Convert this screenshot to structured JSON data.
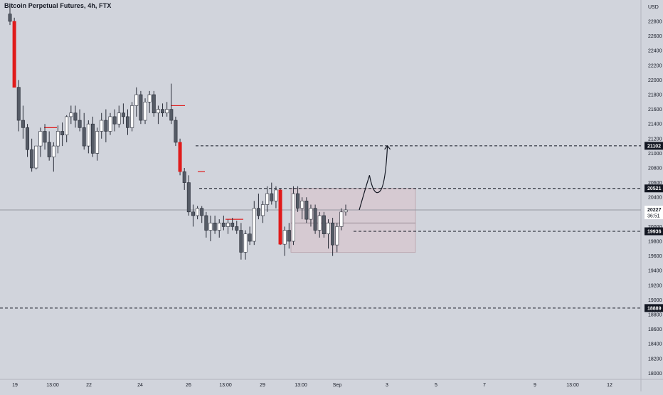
{
  "header": {
    "symbol_title": "Bitcoin Perpetual Futures, 4h, FTX"
  },
  "price_axis": {
    "currency": "USD",
    "ticks": [
      22800,
      22600,
      22400,
      22200,
      22000,
      21800,
      21600,
      21400,
      21200,
      21000,
      20800,
      20600,
      20400,
      20200,
      20000,
      19800,
      19600,
      19400,
      19200,
      19000,
      18800,
      18600,
      18400,
      18200,
      18000
    ]
  },
  "time_axis": {
    "labels": [
      "19",
      "13:00",
      "22",
      "24",
      "26",
      "13:00",
      "29",
      "13:00",
      "Sep",
      "3",
      "5",
      "7",
      "9",
      "13:00",
      "12"
    ]
  },
  "levels": [
    {
      "price": 21102,
      "label": "21102"
    },
    {
      "price": 20521,
      "label": "20521"
    },
    {
      "price": 19936,
      "label": "19936"
    },
    {
      "price": 18889,
      "label": "18889"
    }
  ],
  "current_price": {
    "price": 20227,
    "label": "20227",
    "countdown": "36:51"
  },
  "colors": {
    "background": "#d1d4dc",
    "up_body": "#ffffff",
    "down_body": "#555b66",
    "highlight_down": "#e01b1b",
    "wick": "#2a2e39",
    "range_box": "#d9c3cc",
    "dashed": "#131722"
  },
  "chart_data": {
    "type": "candlestick",
    "title": "Bitcoin Perpetual Futures, 4h, FTX",
    "y_unit": "USD",
    "ylim": [
      17950,
      23000
    ],
    "candles": [
      {
        "o": 22900,
        "h": 23000,
        "l": 22750,
        "c": 22800
      },
      {
        "o": 22800,
        "h": 22850,
        "l": 21900,
        "c": 21900,
        "red": true
      },
      {
        "o": 21900,
        "h": 22000,
        "l": 21300,
        "c": 21450
      },
      {
        "o": 21450,
        "h": 21650,
        "l": 21200,
        "c": 21350
      },
      {
        "o": 21350,
        "h": 21400,
        "l": 20950,
        "c": 21050
      },
      {
        "o": 21050,
        "h": 21200,
        "l": 20750,
        "c": 20800
      },
      {
        "o": 20800,
        "h": 21100,
        "l": 20780,
        "c": 21100
      },
      {
        "o": 21100,
        "h": 21350,
        "l": 20950,
        "c": 21300
      },
      {
        "o": 21300,
        "h": 21400,
        "l": 21050,
        "c": 21150
      },
      {
        "o": 21150,
        "h": 21300,
        "l": 20900,
        "c": 20950
      },
      {
        "o": 20950,
        "h": 21150,
        "l": 20750,
        "c": 21100
      },
      {
        "o": 21100,
        "h": 21380,
        "l": 21000,
        "c": 21300
      },
      {
        "o": 21300,
        "h": 21420,
        "l": 21100,
        "c": 21250
      },
      {
        "o": 21250,
        "h": 21520,
        "l": 21150,
        "c": 21500
      },
      {
        "o": 21500,
        "h": 21650,
        "l": 21400,
        "c": 21550
      },
      {
        "o": 21550,
        "h": 21650,
        "l": 21350,
        "c": 21450
      },
      {
        "o": 21450,
        "h": 21600,
        "l": 21300,
        "c": 21350
      },
      {
        "o": 21350,
        "h": 21550,
        "l": 21050,
        "c": 21100
      },
      {
        "o": 21100,
        "h": 21450,
        "l": 21000,
        "c": 21400
      },
      {
        "o": 21400,
        "h": 21500,
        "l": 20950,
        "c": 21000
      },
      {
        "o": 21000,
        "h": 21350,
        "l": 20900,
        "c": 21300
      },
      {
        "o": 21300,
        "h": 21550,
        "l": 21200,
        "c": 21450
      },
      {
        "o": 21450,
        "h": 21600,
        "l": 21150,
        "c": 21300
      },
      {
        "o": 21300,
        "h": 21550,
        "l": 21250,
        "c": 21500
      },
      {
        "o": 21500,
        "h": 21600,
        "l": 21300,
        "c": 21400
      },
      {
        "o": 21400,
        "h": 21650,
        "l": 21350,
        "c": 21550
      },
      {
        "o": 21550,
        "h": 21680,
        "l": 21400,
        "c": 21500
      },
      {
        "o": 21500,
        "h": 21600,
        "l": 21250,
        "c": 21350
      },
      {
        "o": 21350,
        "h": 21700,
        "l": 21300,
        "c": 21650
      },
      {
        "o": 21650,
        "h": 21900,
        "l": 21500,
        "c": 21800
      },
      {
        "o": 21800,
        "h": 21850,
        "l": 21400,
        "c": 21450
      },
      {
        "o": 21450,
        "h": 21750,
        "l": 21400,
        "c": 21700
      },
      {
        "o": 21700,
        "h": 21850,
        "l": 21550,
        "c": 21800
      },
      {
        "o": 21800,
        "h": 21850,
        "l": 21500,
        "c": 21550
      },
      {
        "o": 21550,
        "h": 21650,
        "l": 21400,
        "c": 21600
      },
      {
        "o": 21600,
        "h": 21680,
        "l": 21500,
        "c": 21550
      },
      {
        "o": 21550,
        "h": 21700,
        "l": 21500,
        "c": 21600
      },
      {
        "o": 21600,
        "h": 21950,
        "l": 21400,
        "c": 21450
      },
      {
        "o": 21450,
        "h": 21500,
        "l": 21100,
        "c": 21150
      },
      {
        "o": 21150,
        "h": 21200,
        "l": 20700,
        "c": 20750,
        "red": true
      },
      {
        "o": 20750,
        "h": 20800,
        "l": 20500,
        "c": 20600
      },
      {
        "o": 20600,
        "h": 20700,
        "l": 20150,
        "c": 20200
      },
      {
        "o": 20200,
        "h": 20300,
        "l": 20000,
        "c": 20150
      },
      {
        "o": 20150,
        "h": 20280,
        "l": 20100,
        "c": 20250
      },
      {
        "o": 20250,
        "h": 20280,
        "l": 20050,
        "c": 20150
      },
      {
        "o": 20150,
        "h": 20200,
        "l": 19850,
        "c": 19950
      },
      {
        "o": 19950,
        "h": 20150,
        "l": 19800,
        "c": 20050
      },
      {
        "o": 20050,
        "h": 20150,
        "l": 19900,
        "c": 19950
      },
      {
        "o": 19950,
        "h": 20100,
        "l": 19850,
        "c": 20050
      },
      {
        "o": 20050,
        "h": 20150,
        "l": 19950,
        "c": 20000
      },
      {
        "o": 20000,
        "h": 20100,
        "l": 19900,
        "c": 20050
      },
      {
        "o": 20050,
        "h": 20120,
        "l": 19950,
        "c": 20000
      },
      {
        "o": 20000,
        "h": 20080,
        "l": 19900,
        "c": 19950
      },
      {
        "o": 19950,
        "h": 20050,
        "l": 19550,
        "c": 19650
      },
      {
        "o": 19650,
        "h": 19950,
        "l": 19550,
        "c": 19900
      },
      {
        "o": 19900,
        "h": 20000,
        "l": 19750,
        "c": 19800
      },
      {
        "o": 19800,
        "h": 20350,
        "l": 19750,
        "c": 20250
      },
      {
        "o": 20250,
        "h": 20450,
        "l": 20100,
        "c": 20150
      },
      {
        "o": 20150,
        "h": 20350,
        "l": 20050,
        "c": 20300
      },
      {
        "o": 20300,
        "h": 20550,
        "l": 20200,
        "c": 20450
      },
      {
        "o": 20450,
        "h": 20600,
        "l": 20300,
        "c": 20350
      },
      {
        "o": 20350,
        "h": 20550,
        "l": 20250,
        "c": 20500
      },
      {
        "o": 20500,
        "h": 20520,
        "l": 19750,
        "c": 19760,
        "red": true
      },
      {
        "o": 19760,
        "h": 20000,
        "l": 19600,
        "c": 19950
      },
      {
        "o": 19950,
        "h": 20050,
        "l": 19700,
        "c": 19800
      },
      {
        "o": 19800,
        "h": 20550,
        "l": 19750,
        "c": 20450
      },
      {
        "o": 20450,
        "h": 20550,
        "l": 20200,
        "c": 20250
      },
      {
        "o": 20250,
        "h": 20400,
        "l": 20100,
        "c": 20350
      },
      {
        "o": 20350,
        "h": 20400,
        "l": 20050,
        "c": 20100
      },
      {
        "o": 20100,
        "h": 20300,
        "l": 20000,
        "c": 20250
      },
      {
        "o": 20250,
        "h": 20300,
        "l": 19900,
        "c": 19950
      },
      {
        "o": 19950,
        "h": 20200,
        "l": 19850,
        "c": 20150
      },
      {
        "o": 20150,
        "h": 20200,
        "l": 19850,
        "c": 19900
      },
      {
        "o": 19900,
        "h": 20100,
        "l": 19700,
        "c": 20050
      },
      {
        "o": 20050,
        "h": 20120,
        "l": 19600,
        "c": 19750
      },
      {
        "o": 19750,
        "h": 20050,
        "l": 19650,
        "c": 20000
      },
      {
        "o": 20000,
        "h": 20250,
        "l": 19950,
        "c": 20200
      },
      {
        "o": 20200,
        "h": 20300,
        "l": 20150,
        "c": 20227
      }
    ],
    "range_box": {
      "top": 20521,
      "bottom": 19650,
      "mid": 20050
    },
    "projection": [
      [
        20227,
        0
      ],
      [
        20700,
        4
      ],
      [
        20480,
        8
      ],
      [
        21102,
        11
      ]
    ]
  }
}
